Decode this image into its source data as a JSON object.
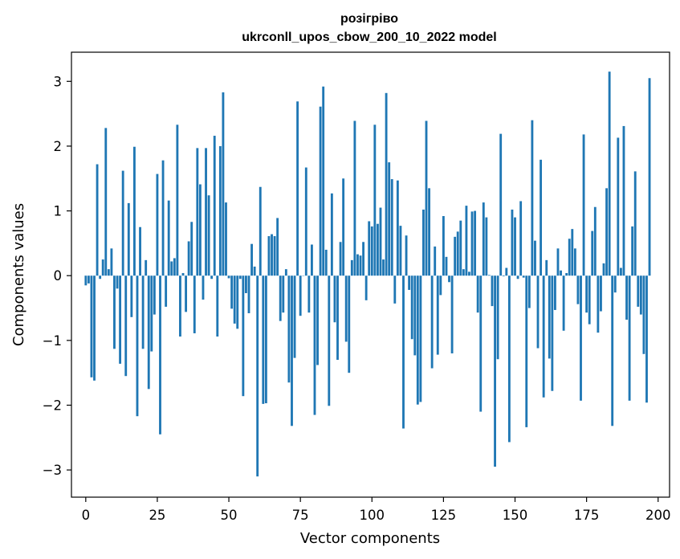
{
  "chart_data": {
    "type": "bar",
    "title": "розігріво",
    "subtitle": "ukrconll_upos_cbow_200_10_2022 model",
    "xlabel": "Vector components",
    "ylabel": "Components values",
    "xlim": [
      -5,
      204
    ],
    "ylim": [
      -3.42,
      3.45
    ],
    "xticks": [
      0,
      25,
      50,
      75,
      100,
      125,
      150,
      175,
      200
    ],
    "yticks": [
      -3,
      -2,
      -1,
      0,
      1,
      2,
      3
    ],
    "ytick_labels": [
      "−3",
      "−2",
      "−1",
      "0",
      "1",
      "2",
      "3"
    ],
    "bar_color": "#1f77b4",
    "grid": false,
    "series": [
      {
        "values": [
          -0.15,
          -0.12,
          -1.57,
          -1.62,
          1.72,
          -0.05,
          0.25,
          2.28,
          0.1,
          0.42,
          -1.13,
          -0.2,
          -1.36,
          1.62,
          -1.55,
          1.12,
          -0.64,
          1.99,
          -2.17,
          0.75,
          -1.13,
          0.24,
          -1.75,
          -1.17,
          -0.6,
          1.57,
          -2.45,
          1.78,
          -0.48,
          1.16,
          0.22,
          0.27,
          2.33,
          -0.94,
          0.04,
          -0.56,
          0.53,
          0.83,
          -0.89,
          1.97,
          1.41,
          -0.37,
          1.97,
          1.24,
          -0.05,
          2.16,
          -0.94,
          2.0,
          2.83,
          1.13,
          -0.04,
          -0.51,
          -0.74,
          -0.82,
          -0.05,
          -1.86,
          -0.27,
          -0.58,
          0.49,
          0.14,
          -3.1,
          1.37,
          -1.98,
          -1.97,
          0.61,
          0.64,
          0.61,
          0.89,
          -0.7,
          -0.57,
          0.1,
          -1.65,
          -2.32,
          -1.27,
          2.69,
          -0.62,
          0.0,
          1.67,
          -0.57,
          0.48,
          -2.15,
          -1.38,
          2.61,
          2.92,
          0.4,
          -2.01,
          1.27,
          -0.72,
          -1.3,
          0.52,
          1.5,
          -1.02,
          -1.5,
          0.24,
          2.39,
          0.33,
          0.31,
          0.52,
          -0.38,
          0.84,
          0.76,
          2.33,
          0.8,
          1.05,
          0.25,
          2.82,
          1.75,
          1.49,
          -0.43,
          1.47,
          0.77,
          -2.36,
          0.62,
          -0.22,
          -0.98,
          -1.23,
          -1.99,
          -1.95,
          1.02,
          2.39,
          1.35,
          -1.43,
          0.45,
          -1.22,
          -0.3,
          0.92,
          0.29,
          -0.1,
          -1.2,
          0.6,
          0.68,
          0.85,
          0.1,
          1.08,
          0.06,
          0.99,
          1.0,
          -0.57,
          -2.1,
          1.13,
          0.9,
          0.01,
          -0.47,
          -2.95,
          -1.29,
          2.19,
          -0.01,
          0.12,
          -2.57,
          1.02,
          0.9,
          -0.05,
          1.15,
          -0.03,
          -2.34,
          -0.5,
          2.4,
          0.54,
          -1.12,
          1.79,
          -1.88,
          0.24,
          -1.28,
          -1.78,
          -0.53,
          0.42,
          0.08,
          -0.85,
          0.04,
          0.57,
          0.72,
          0.42,
          -0.44,
          -1.93,
          2.18,
          -0.57,
          -0.75,
          0.69,
          1.06,
          -0.88,
          -0.55,
          0.19,
          1.35,
          3.15,
          -2.32,
          -0.26,
          2.13,
          0.12,
          2.31,
          -0.68,
          -1.93,
          0.76,
          1.61,
          -0.48,
          -0.6,
          -1.21,
          -1.96,
          3.05
        ]
      }
    ]
  }
}
